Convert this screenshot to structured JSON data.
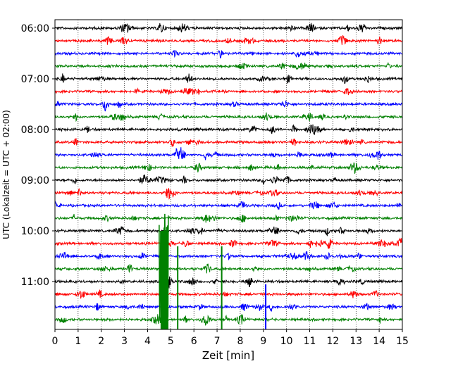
{
  "chart_data": {
    "type": "line",
    "title": "",
    "xlabel": "Zeit  [min]",
    "ylabel": "UTC (Lokalzeit = UTC + 02:00)",
    "xlim": [
      0,
      15
    ],
    "xticks": [
      0,
      1,
      2,
      3,
      4,
      5,
      6,
      7,
      8,
      9,
      10,
      11,
      12,
      13,
      14,
      15
    ],
    "grid": "vertical dotted",
    "ytick_labels": [
      "06:00",
      "07:00",
      "08:00",
      "09:00",
      "10:00",
      "11:00"
    ],
    "trace_interval_minutes": 15,
    "trace_start": "06:00",
    "trace_count": 24,
    "trace_colors": [
      "#000000",
      "#ff0000",
      "#0000ff",
      "#008000"
    ],
    "events": [
      {
        "trace_start": "10:45",
        "x_start": 4.5,
        "x_end": 4.9,
        "type": "large burst"
      },
      {
        "trace_start": "10:45",
        "x": 5.3,
        "type": "spike"
      },
      {
        "trace_start": "10:45",
        "x": 7.2,
        "type": "spike"
      },
      {
        "trace_start": "11:30",
        "x": 9.1,
        "type": "spike"
      },
      {
        "trace_start": "11:00",
        "x": 8.4,
        "type": "small burst"
      }
    ]
  }
}
